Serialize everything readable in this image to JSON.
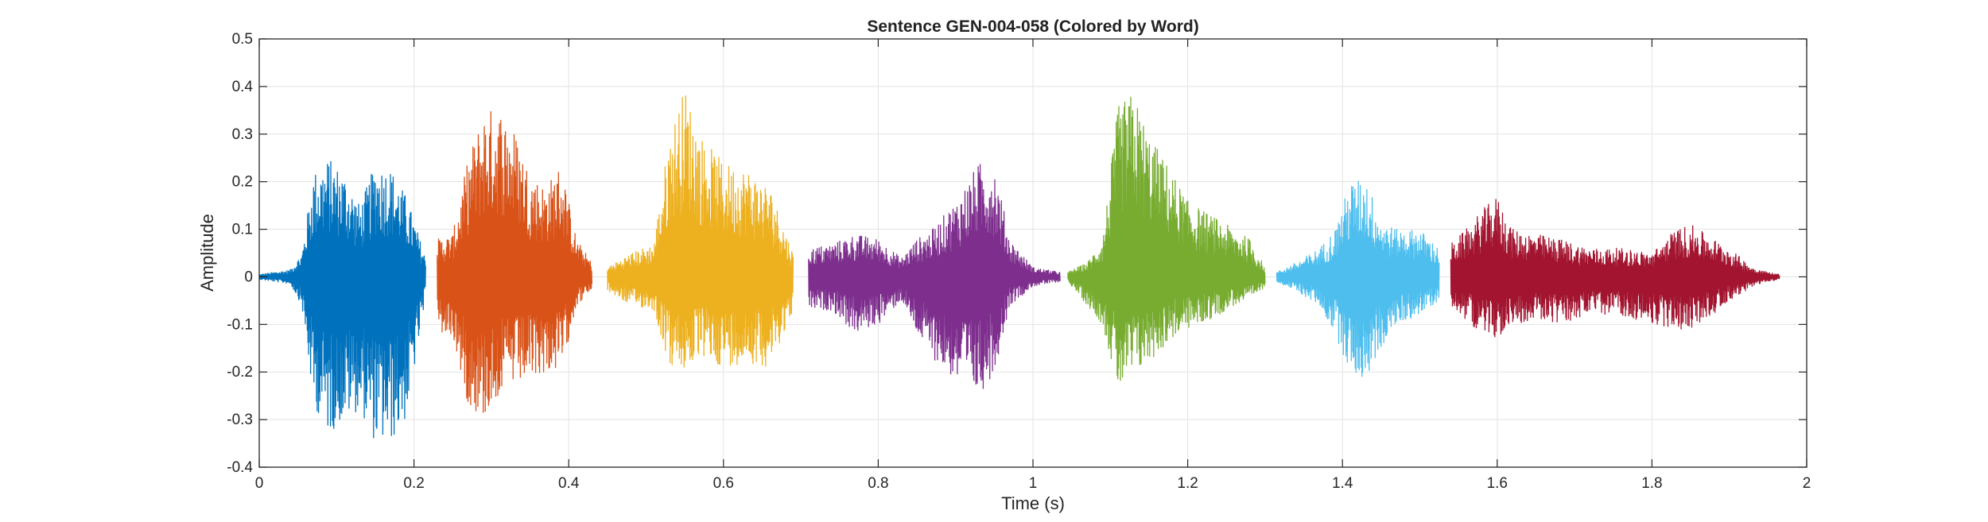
{
  "chart_data": {
    "type": "line",
    "title": "Sentence GEN-004-058 (Colored by Word)",
    "xlabel": "Time (s)",
    "ylabel": "Amplitude",
    "xlim": [
      0,
      2
    ],
    "ylim": [
      -0.4,
      0.5
    ],
    "grid": true,
    "legend": "none",
    "x_ticks": [
      0,
      0.2,
      0.4,
      0.6,
      0.8,
      1,
      1.2,
      1.4,
      1.6,
      1.8,
      2
    ],
    "x_tick_labels": [
      "0",
      "0.2",
      "0.4",
      "0.6",
      "0.8",
      "1",
      "1.2",
      "1.4",
      "1.6",
      "1.8",
      "2"
    ],
    "y_ticks": [
      -0.4,
      -0.3,
      -0.2,
      -0.1,
      0,
      0.1,
      0.2,
      0.3,
      0.4,
      0.5
    ],
    "y_tick_labels": [
      "-0.4",
      "-0.3",
      "-0.2",
      "-0.1",
      "0",
      "0.1",
      "0.2",
      "0.3",
      "0.4",
      "0.5"
    ],
    "series": [
      {
        "color": "#0072bd",
        "time_range": [
          0,
          0.215
        ],
        "envelope_t": [
          0,
          0.02,
          0.04,
          0.055,
          0.07,
          0.09,
          0.11,
          0.13,
          0.15,
          0.17,
          0.19,
          0.2,
          0.215
        ],
        "envelope_max": [
          0.005,
          0.01,
          0.015,
          0.05,
          0.22,
          0.25,
          0.22,
          0.15,
          0.24,
          0.23,
          0.17,
          0.12,
          0.04
        ],
        "envelope_min": [
          -0.005,
          -0.01,
          -0.015,
          -0.06,
          -0.27,
          -0.33,
          -0.3,
          -0.28,
          -0.35,
          -0.35,
          -0.3,
          -0.2,
          -0.05
        ]
      },
      {
        "color": "#d95319",
        "time_range": [
          0.23,
          0.43
        ],
        "envelope_t": [
          0.23,
          0.25,
          0.27,
          0.29,
          0.31,
          0.33,
          0.35,
          0.37,
          0.39,
          0.41,
          0.43
        ],
        "envelope_max": [
          0.08,
          0.09,
          0.25,
          0.35,
          0.36,
          0.31,
          0.22,
          0.19,
          0.24,
          0.08,
          0.03
        ],
        "envelope_min": [
          -0.12,
          -0.13,
          -0.27,
          -0.3,
          -0.25,
          -0.23,
          -0.22,
          -0.2,
          -0.2,
          -0.06,
          -0.03
        ]
      },
      {
        "color": "#edb120",
        "time_range": [
          0.45,
          0.69
        ],
        "envelope_t": [
          0.45,
          0.48,
          0.51,
          0.53,
          0.55,
          0.57,
          0.6,
          0.63,
          0.66,
          0.69
        ],
        "envelope_max": [
          0.02,
          0.05,
          0.07,
          0.3,
          0.4,
          0.3,
          0.24,
          0.23,
          0.19,
          0.05
        ],
        "envelope_min": [
          -0.03,
          -0.06,
          -0.07,
          -0.19,
          -0.2,
          -0.17,
          -0.19,
          -0.18,
          -0.19,
          -0.07
        ]
      },
      {
        "color": "#7e2f8e",
        "time_range": [
          0.71,
          1.035
        ],
        "envelope_t": [
          0.71,
          0.74,
          0.77,
          0.8,
          0.83,
          0.85,
          0.87,
          0.9,
          0.93,
          0.95,
          0.97,
          1.0,
          1.035
        ],
        "envelope_max": [
          0.06,
          0.07,
          0.09,
          0.08,
          0.04,
          0.08,
          0.1,
          0.16,
          0.24,
          0.24,
          0.08,
          0.02,
          0.01
        ],
        "envelope_min": [
          -0.07,
          -0.07,
          -0.12,
          -0.1,
          -0.05,
          -0.12,
          -0.17,
          -0.22,
          -0.25,
          -0.2,
          -0.06,
          -0.02,
          -0.01
        ]
      },
      {
        "color": "#77ac30",
        "time_range": [
          1.045,
          1.3
        ],
        "envelope_t": [
          1.045,
          1.07,
          1.09,
          1.11,
          1.13,
          1.15,
          1.18,
          1.2,
          1.23,
          1.26,
          1.28,
          1.3
        ],
        "envelope_max": [
          0.01,
          0.03,
          0.08,
          0.36,
          0.39,
          0.3,
          0.22,
          0.16,
          0.13,
          0.1,
          0.08,
          0.02
        ],
        "envelope_min": [
          -0.01,
          -0.06,
          -0.1,
          -0.24,
          -0.21,
          -0.18,
          -0.13,
          -0.11,
          -0.09,
          -0.06,
          -0.05,
          -0.02
        ]
      },
      {
        "color": "#4dbeee",
        "time_range": [
          1.315,
          1.525
        ],
        "envelope_t": [
          1.315,
          1.34,
          1.37,
          1.39,
          1.41,
          1.43,
          1.45,
          1.47,
          1.5,
          1.525
        ],
        "envelope_max": [
          0.01,
          0.03,
          0.06,
          0.1,
          0.2,
          0.21,
          0.12,
          0.1,
          0.1,
          0.06
        ],
        "envelope_min": [
          -0.01,
          -0.03,
          -0.06,
          -0.12,
          -0.2,
          -0.22,
          -0.15,
          -0.1,
          -0.08,
          -0.05
        ]
      },
      {
        "color": "#a2142f",
        "time_range": [
          1.54,
          1.965
        ],
        "envelope_t": [
          1.54,
          1.56,
          1.58,
          1.6,
          1.62,
          1.65,
          1.68,
          1.72,
          1.76,
          1.8,
          1.83,
          1.85,
          1.87,
          1.9,
          1.93,
          1.95,
          1.965
        ],
        "envelope_max": [
          0.07,
          0.1,
          0.14,
          0.17,
          0.1,
          0.09,
          0.08,
          0.06,
          0.06,
          0.05,
          0.1,
          0.11,
          0.09,
          0.06,
          0.02,
          0.01,
          0.005
        ],
        "envelope_min": [
          -0.06,
          -0.09,
          -0.12,
          -0.13,
          -0.1,
          -0.09,
          -0.1,
          -0.08,
          -0.08,
          -0.1,
          -0.11,
          -0.11,
          -0.09,
          -0.05,
          -0.02,
          -0.01,
          -0.005
        ]
      }
    ]
  }
}
